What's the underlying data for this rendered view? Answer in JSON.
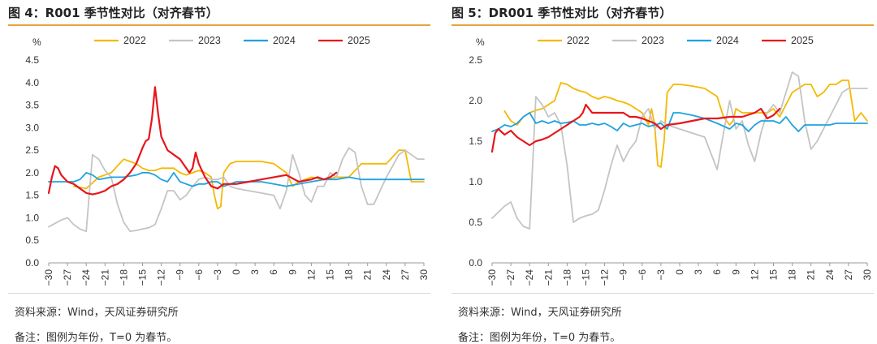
{
  "colors": {
    "2022": "#f5b800",
    "2023": "#c4c4c4",
    "2024": "#1ea2e0",
    "2025": "#e8151b",
    "accent": "#e8a33a"
  },
  "footer": {
    "source": "资料来源：Wind，天风证券研究所",
    "note": "备注：图例为年份，T=0 为春节。"
  },
  "chart_data": [
    {
      "type": "line",
      "title": "图 4：R001 季节性对比（对齐春节）",
      "unit": "%",
      "xlim": [
        -30,
        30
      ],
      "ylim": [
        0,
        4.5
      ],
      "xticks": [
        -30,
        -27,
        -24,
        -21,
        -18,
        -15,
        -12,
        -9,
        -6,
        -3,
        0,
        3,
        6,
        9,
        12,
        15,
        18,
        21,
        24,
        27,
        30
      ],
      "yticks": [
        0.0,
        0.5,
        1.0,
        1.5,
        2.0,
        2.5,
        3.0,
        3.5,
        4.0,
        4.5
      ],
      "legend": [
        "2022",
        "2023",
        "2024",
        "2025"
      ],
      "series": [
        {
          "name": "2022",
          "x": [
            -26,
            -24,
            -22,
            -20,
            -18,
            -17,
            -16,
            -15,
            -14,
            -13,
            -12,
            -11,
            -10,
            -9,
            -8,
            -7,
            -6,
            -5,
            -4,
            -3.5,
            -3,
            -2.5,
            -2,
            -1,
            0,
            2,
            4,
            6,
            8,
            9,
            10,
            12,
            14,
            16,
            18,
            20,
            22,
            24,
            26,
            27,
            28,
            29,
            30
          ],
          "y": [
            1.7,
            1.65,
            1.9,
            2.0,
            2.3,
            2.25,
            2.2,
            2.1,
            2.05,
            2.05,
            2.1,
            2.1,
            2.1,
            2.0,
            1.95,
            2.0,
            2.05,
            2.0,
            1.9,
            1.5,
            1.2,
            1.25,
            2.0,
            2.2,
            2.25,
            2.25,
            2.25,
            2.2,
            2.0,
            1.7,
            1.8,
            1.9,
            1.85,
            1.9,
            1.9,
            2.2,
            2.2,
            2.2,
            2.5,
            2.5,
            1.8,
            1.8,
            1.8
          ]
        },
        {
          "name": "2023",
          "x": [
            -30,
            -28,
            -27,
            -26,
            -25,
            -24,
            -23,
            -22,
            -21,
            -20,
            -19,
            -18,
            -17,
            -16,
            -15,
            -14,
            -13,
            -12,
            -11,
            -10,
            -9,
            -8,
            -7,
            -6,
            -5,
            -4,
            -3,
            -2,
            -1,
            0,
            2,
            4,
            6,
            7,
            8,
            9,
            10,
            11,
            12,
            13,
            14,
            15,
            16,
            17,
            18,
            19,
            20,
            21,
            22,
            24,
            26,
            27,
            28,
            29,
            30
          ],
          "y": [
            0.8,
            0.95,
            1.0,
            0.85,
            0.75,
            0.7,
            2.4,
            2.3,
            2.05,
            1.9,
            1.3,
            0.9,
            0.7,
            0.72,
            0.75,
            0.78,
            0.85,
            1.2,
            1.6,
            1.6,
            1.4,
            1.5,
            1.7,
            1.85,
            1.9,
            1.85,
            1.85,
            1.9,
            1.7,
            1.65,
            1.6,
            1.55,
            1.5,
            1.2,
            1.6,
            2.4,
            2.0,
            1.5,
            1.35,
            1.7,
            1.7,
            2.0,
            1.9,
            2.3,
            2.55,
            2.45,
            1.7,
            1.3,
            1.3,
            1.9,
            2.4,
            2.5,
            2.4,
            2.3,
            2.3
          ]
        },
        {
          "name": "2024",
          "x": [
            -30,
            -28,
            -26,
            -25,
            -24,
            -23,
            -22,
            -20,
            -18,
            -16,
            -15,
            -14,
            -13,
            -12,
            -11,
            -10,
            -9,
            -8,
            -7,
            -6,
            -5,
            -4,
            -3,
            -2,
            -1,
            0,
            2,
            4,
            6,
            8,
            10,
            12,
            14,
            16,
            18,
            20,
            22,
            24,
            26,
            28,
            30
          ],
          "y": [
            1.8,
            1.8,
            1.8,
            1.85,
            2.0,
            1.95,
            1.85,
            1.9,
            1.9,
            1.95,
            2.0,
            2.0,
            1.95,
            1.85,
            1.8,
            2.0,
            1.8,
            1.75,
            1.7,
            1.75,
            1.75,
            1.8,
            1.8,
            1.7,
            1.75,
            1.8,
            1.8,
            1.8,
            1.75,
            1.7,
            1.75,
            1.8,
            1.85,
            1.85,
            1.9,
            1.85,
            1.85,
            1.85,
            1.85,
            1.85,
            1.85
          ]
        },
        {
          "name": "2025",
          "x": [
            -30,
            -29.5,
            -29,
            -28.5,
            -28,
            -27,
            -26,
            -25,
            -24,
            -23,
            -22,
            -21,
            -20,
            -19,
            -18,
            -17,
            -16,
            -15,
            -14.5,
            -14,
            -13.5,
            -13,
            -12.5,
            -12,
            -11,
            -10,
            -9,
            -8,
            -7.5,
            -7,
            -6.5,
            -6,
            -5,
            -4,
            -3,
            -2,
            0,
            2,
            4,
            6,
            8,
            10,
            12,
            13,
            14,
            15,
            16
          ],
          "y": [
            1.55,
            1.9,
            2.15,
            2.1,
            1.95,
            1.8,
            1.75,
            1.65,
            1.55,
            1.52,
            1.55,
            1.6,
            1.7,
            1.75,
            1.85,
            2.0,
            2.2,
            2.55,
            2.7,
            2.75,
            3.2,
            3.9,
            3.3,
            2.8,
            2.5,
            2.4,
            2.3,
            2.1,
            2.0,
            2.1,
            2.45,
            2.2,
            1.9,
            1.7,
            1.65,
            1.75,
            1.75,
            1.8,
            1.85,
            1.9,
            1.95,
            1.8,
            1.85,
            1.9,
            1.85,
            1.9,
            2.0
          ]
        }
      ]
    },
    {
      "type": "line",
      "title": "图 5：DR001 季节性对比（对齐春节）",
      "unit": "%",
      "xlim": [
        -30,
        30
      ],
      "ylim": [
        0,
        2.5
      ],
      "xticks": [
        -30,
        -27,
        -24,
        -21,
        -18,
        -15,
        -12,
        -9,
        -6,
        -3,
        0,
        3,
        6,
        9,
        12,
        15,
        18,
        21,
        24,
        27,
        30
      ],
      "yticks": [
        0.0,
        0.5,
        1.0,
        1.5,
        2.0,
        2.5
      ],
      "legend": [
        "2022",
        "2023",
        "2024",
        "2025"
      ],
      "series": [
        {
          "name": "2022",
          "x": [
            -28,
            -27,
            -26,
            -25,
            -24,
            -23,
            -22,
            -21,
            -20,
            -19,
            -18,
            -17,
            -16,
            -15,
            -14,
            -13,
            -12,
            -11,
            -10,
            -9,
            -8,
            -7,
            -6,
            -5,
            -4.5,
            -4,
            -3.5,
            -3,
            -2.5,
            -2,
            -1,
            0,
            2,
            4,
            6,
            7,
            8,
            8.5,
            9,
            10,
            11,
            12,
            13,
            14,
            15,
            16,
            17,
            18,
            19,
            20,
            21,
            22,
            23,
            24,
            25,
            26,
            27,
            28,
            29,
            30
          ],
          "y": [
            1.87,
            1.75,
            1.7,
            1.8,
            1.85,
            1.88,
            1.9,
            1.95,
            2.0,
            2.22,
            2.2,
            2.15,
            2.12,
            2.1,
            2.05,
            2.02,
            2.05,
            2.03,
            2.0,
            1.98,
            1.95,
            1.9,
            1.85,
            1.7,
            1.9,
            1.7,
            1.2,
            1.18,
            1.5,
            2.1,
            2.2,
            2.2,
            2.18,
            2.15,
            2.05,
            1.8,
            1.7,
            1.75,
            1.9,
            1.85,
            1.85,
            1.85,
            1.85,
            1.85,
            1.9,
            1.8,
            1.95,
            2.1,
            2.15,
            2.2,
            2.2,
            2.05,
            2.1,
            2.2,
            2.2,
            2.25,
            2.25,
            1.75,
            1.85,
            1.75
          ]
        },
        {
          "name": "2023",
          "x": [
            -30,
            -28,
            -27,
            -26,
            -25,
            -24,
            -23,
            -22,
            -21,
            -20,
            -19,
            -18,
            -17,
            -16,
            -15,
            -14,
            -13,
            -12,
            -11,
            -10,
            -9,
            -8,
            -7,
            -6,
            -5,
            -4,
            -3.5,
            -3,
            -2,
            0,
            2,
            4,
            6,
            7,
            8,
            9,
            10,
            11,
            12,
            13,
            14,
            15,
            16,
            17,
            18,
            19,
            20,
            21,
            22,
            23,
            24,
            25,
            26,
            27,
            28,
            29,
            30
          ],
          "y": [
            0.55,
            0.7,
            0.75,
            0.55,
            0.45,
            0.42,
            2.05,
            1.95,
            1.8,
            1.85,
            1.7,
            1.2,
            0.5,
            0.55,
            0.58,
            0.6,
            0.65,
            0.9,
            1.2,
            1.45,
            1.25,
            1.4,
            1.5,
            1.8,
            1.9,
            1.65,
            1.7,
            1.75,
            1.7,
            1.65,
            1.6,
            1.55,
            1.15,
            1.6,
            2.0,
            1.65,
            1.75,
            1.45,
            1.25,
            1.6,
            1.85,
            1.95,
            1.85,
            2.1,
            2.35,
            2.3,
            1.75,
            1.4,
            1.5,
            1.65,
            1.8,
            1.95,
            2.1,
            2.15,
            2.15,
            2.15,
            2.15
          ]
        },
        {
          "name": "2024",
          "x": [
            -30,
            -29,
            -28,
            -27,
            -26,
            -25,
            -24,
            -23,
            -22,
            -21,
            -20,
            -19,
            -18,
            -17,
            -16,
            -15,
            -14,
            -13,
            -12,
            -11,
            -10,
            -9,
            -8,
            -7,
            -6,
            -5,
            -4,
            -3,
            -2,
            -1,
            0,
            2,
            4,
            6,
            8,
            9,
            10,
            11,
            12,
            13,
            14,
            15,
            16,
            17,
            18,
            19,
            20,
            21,
            22,
            23,
            24,
            25,
            26,
            27,
            28,
            29,
            30
          ],
          "y": [
            1.62,
            1.65,
            1.7,
            1.68,
            1.72,
            1.8,
            1.85,
            1.72,
            1.75,
            1.72,
            1.75,
            1.72,
            1.73,
            1.75,
            1.7,
            1.7,
            1.72,
            1.7,
            1.72,
            1.68,
            1.63,
            1.72,
            1.68,
            1.7,
            1.72,
            1.68,
            1.7,
            1.72,
            1.65,
            1.85,
            1.85,
            1.82,
            1.78,
            1.72,
            1.65,
            1.72,
            1.7,
            1.62,
            1.7,
            1.75,
            1.75,
            1.75,
            1.72,
            1.8,
            1.7,
            1.62,
            1.7,
            1.7,
            1.7,
            1.7,
            1.7,
            1.72,
            1.72,
            1.72,
            1.72,
            1.72,
            1.72
          ]
        },
        {
          "name": "2025",
          "x": [
            -30,
            -29.5,
            -29,
            -28,
            -27,
            -26,
            -25,
            -24,
            -23,
            -22,
            -21,
            -20,
            -19,
            -18,
            -17,
            -16,
            -15.5,
            -15,
            -14.5,
            -14,
            -13,
            -12,
            -11,
            -10,
            -9,
            -8,
            -7,
            -6,
            -5,
            -4,
            -3,
            -2,
            0,
            2,
            4,
            6,
            8,
            10,
            12,
            13,
            14,
            15,
            16
          ],
          "y": [
            1.37,
            1.6,
            1.65,
            1.58,
            1.63,
            1.55,
            1.5,
            1.45,
            1.5,
            1.52,
            1.55,
            1.6,
            1.65,
            1.7,
            1.75,
            1.8,
            1.85,
            1.95,
            1.9,
            1.85,
            1.85,
            1.85,
            1.85,
            1.85,
            1.85,
            1.8,
            1.8,
            1.78,
            1.75,
            1.72,
            1.65,
            1.7,
            1.72,
            1.75,
            1.78,
            1.78,
            1.8,
            1.8,
            1.85,
            1.9,
            1.78,
            1.82,
            1.9
          ]
        }
      ]
    }
  ]
}
